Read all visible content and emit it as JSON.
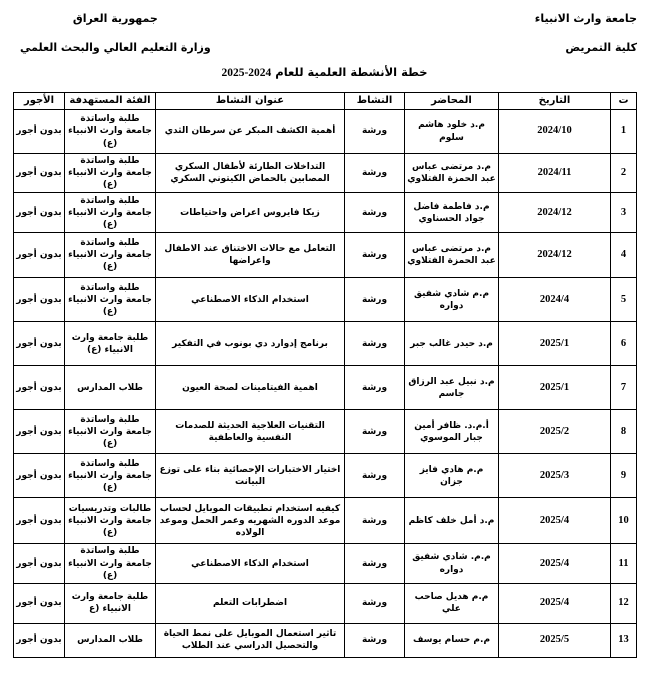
{
  "header": {
    "university": "جامعة وارث الانبياء",
    "college": "كلية التمريض",
    "country": "جمهورية العراق",
    "ministry": "وزارة التعليم العالي والبحث العلمي"
  },
  "title": {
    "text": "خطة الأنشطة العلمية للعام",
    "years": "2025-2024"
  },
  "colors": {
    "text": "#000000",
    "border": "#000000",
    "background": "#ffffff"
  },
  "table": {
    "columns": [
      "ت",
      "التاريخ",
      "المحاضر",
      "النشاط",
      "عنوان النشاط",
      "الفئة المستهدفة",
      "الأجور"
    ],
    "rows": [
      {
        "no": "1",
        "date": "2024/10",
        "lecturer": "م.د خلود هاشم سلوم",
        "activity": "ورشة",
        "title": "أهمية الكشف المبكر عن سرطان الثدي",
        "target": "طلبة واساتذة جامعة وارث الانبياء (ع)",
        "fees": "بدون أجور"
      },
      {
        "no": "2",
        "date": "2024/11",
        "lecturer": "م.د مرتضى عباس عبد الحمزة الفتلاوي",
        "activity": "ورشة",
        "title": "التداخلات الطارئة لأطفال السكري المصابين بالحماض الكيتوني السكري",
        "target": "طلبة واساتذة جامعة وارث الانبياء (ع)",
        "fees": "بدون أجور"
      },
      {
        "no": "3",
        "date": "2024/12",
        "lecturer": "م.د فاطمة فاضل جواد الحسناوي",
        "activity": "ورشة",
        "title": "زيكا فايروس اعراض واحتياطات",
        "target": "طلبة واساتذة جامعة وارث الانبياء (ع)",
        "fees": "بدون أجور"
      },
      {
        "no": "4",
        "date": "2024/12",
        "lecturer": "م.د مرتضى عباس عبد الحمزة الفتلاوي",
        "activity": "ورشة",
        "title": "التعامل مع حالات الاختناق عند الاطفال واعراضها",
        "target": "طلبة واساتذة جامعة وارث الانبياء (ع)",
        "fees": "بدون أجور"
      },
      {
        "no": "5",
        "date": "2024/4",
        "lecturer": "م.م شادي شفيق دواره",
        "activity": "ورشة",
        "title": "استخدام الذكاء الاصطناعي",
        "target": "طلبة واساتذة جامعة وارث الانبياء (ع)",
        "fees": "بدون أجور"
      },
      {
        "no": "6",
        "date": "2025/1",
        "lecturer": "م.د حيدر غالب جبر",
        "activity": "ورشة",
        "title": "برنامج إدوارد دي بونوب في التفكير",
        "target": "طلبة جامعة وارث الانبياء (ع)",
        "fees": "بدون أجور"
      },
      {
        "no": "7",
        "date": "2025/1",
        "lecturer": "م.د نبيل عبد الرزاق جاسم",
        "activity": "ورشة",
        "title": "اهمية الفيتامينات لصحة العيون",
        "target": "طلاب المدارس",
        "fees": "بدون أجور"
      },
      {
        "no": "8",
        "date": "2025/2",
        "lecturer": "أ.م.د. ظافر أمين جبار الموسوي",
        "activity": "ورشة",
        "title": "التقنيات العلاجية الحديثة للصدمات النفسية والعاطفية",
        "target": "طلبة واساتذة جامعة وارث الانبياء (ع)",
        "fees": "بدون أجور"
      },
      {
        "no": "9",
        "date": "2025/3",
        "lecturer": "م.م هادي فايز جزان",
        "activity": "ورشة",
        "title": "اختيار الاختبارات الإحصائية بناء على توزع البيانت",
        "target": "طلبة واساتذة جامعة وارث الانبياء (ع)",
        "fees": "بدون أجور"
      },
      {
        "no": "10",
        "date": "2025/4",
        "lecturer": "م.د أمل خلف كاظم",
        "activity": "ورشة",
        "title": "كيفيه استخدام تطبيقات الموبايل لحساب موعد الدوره الشهريه وعمر الحمل وموعد الولاده",
        "target": "طالبات وتدريسيات جامعة وارث الانبياء (ع)",
        "fees": "بدون أجور"
      },
      {
        "no": "11",
        "date": "2025/4",
        "lecturer": "م.م. شادي شفيق دواره",
        "activity": "ورشة",
        "title": "استخدام الذكاء الاصطناعي",
        "target": "طلبة واساتذة جامعة وارث الانبياء (ع)",
        "fees": "بدون أجور"
      },
      {
        "no": "12",
        "date": "2025/4",
        "lecturer": "م.م هديل صاحب علي",
        "activity": "ورشة",
        "title": "اضطرابات التعلم",
        "target": "طلبة جامعة وارث الانبياء (ع",
        "fees": "بدون أجور"
      },
      {
        "no": "13",
        "date": "2025/5",
        "lecturer": "م.م حسام يوسف",
        "activity": "ورشة",
        "title": "تاثير استعمال الموبايل على نمط الحياة والتحصيل الدراسي عند الطلاب",
        "target": "طلاب المدارس",
        "fees": "بدون أجور"
      }
    ]
  }
}
